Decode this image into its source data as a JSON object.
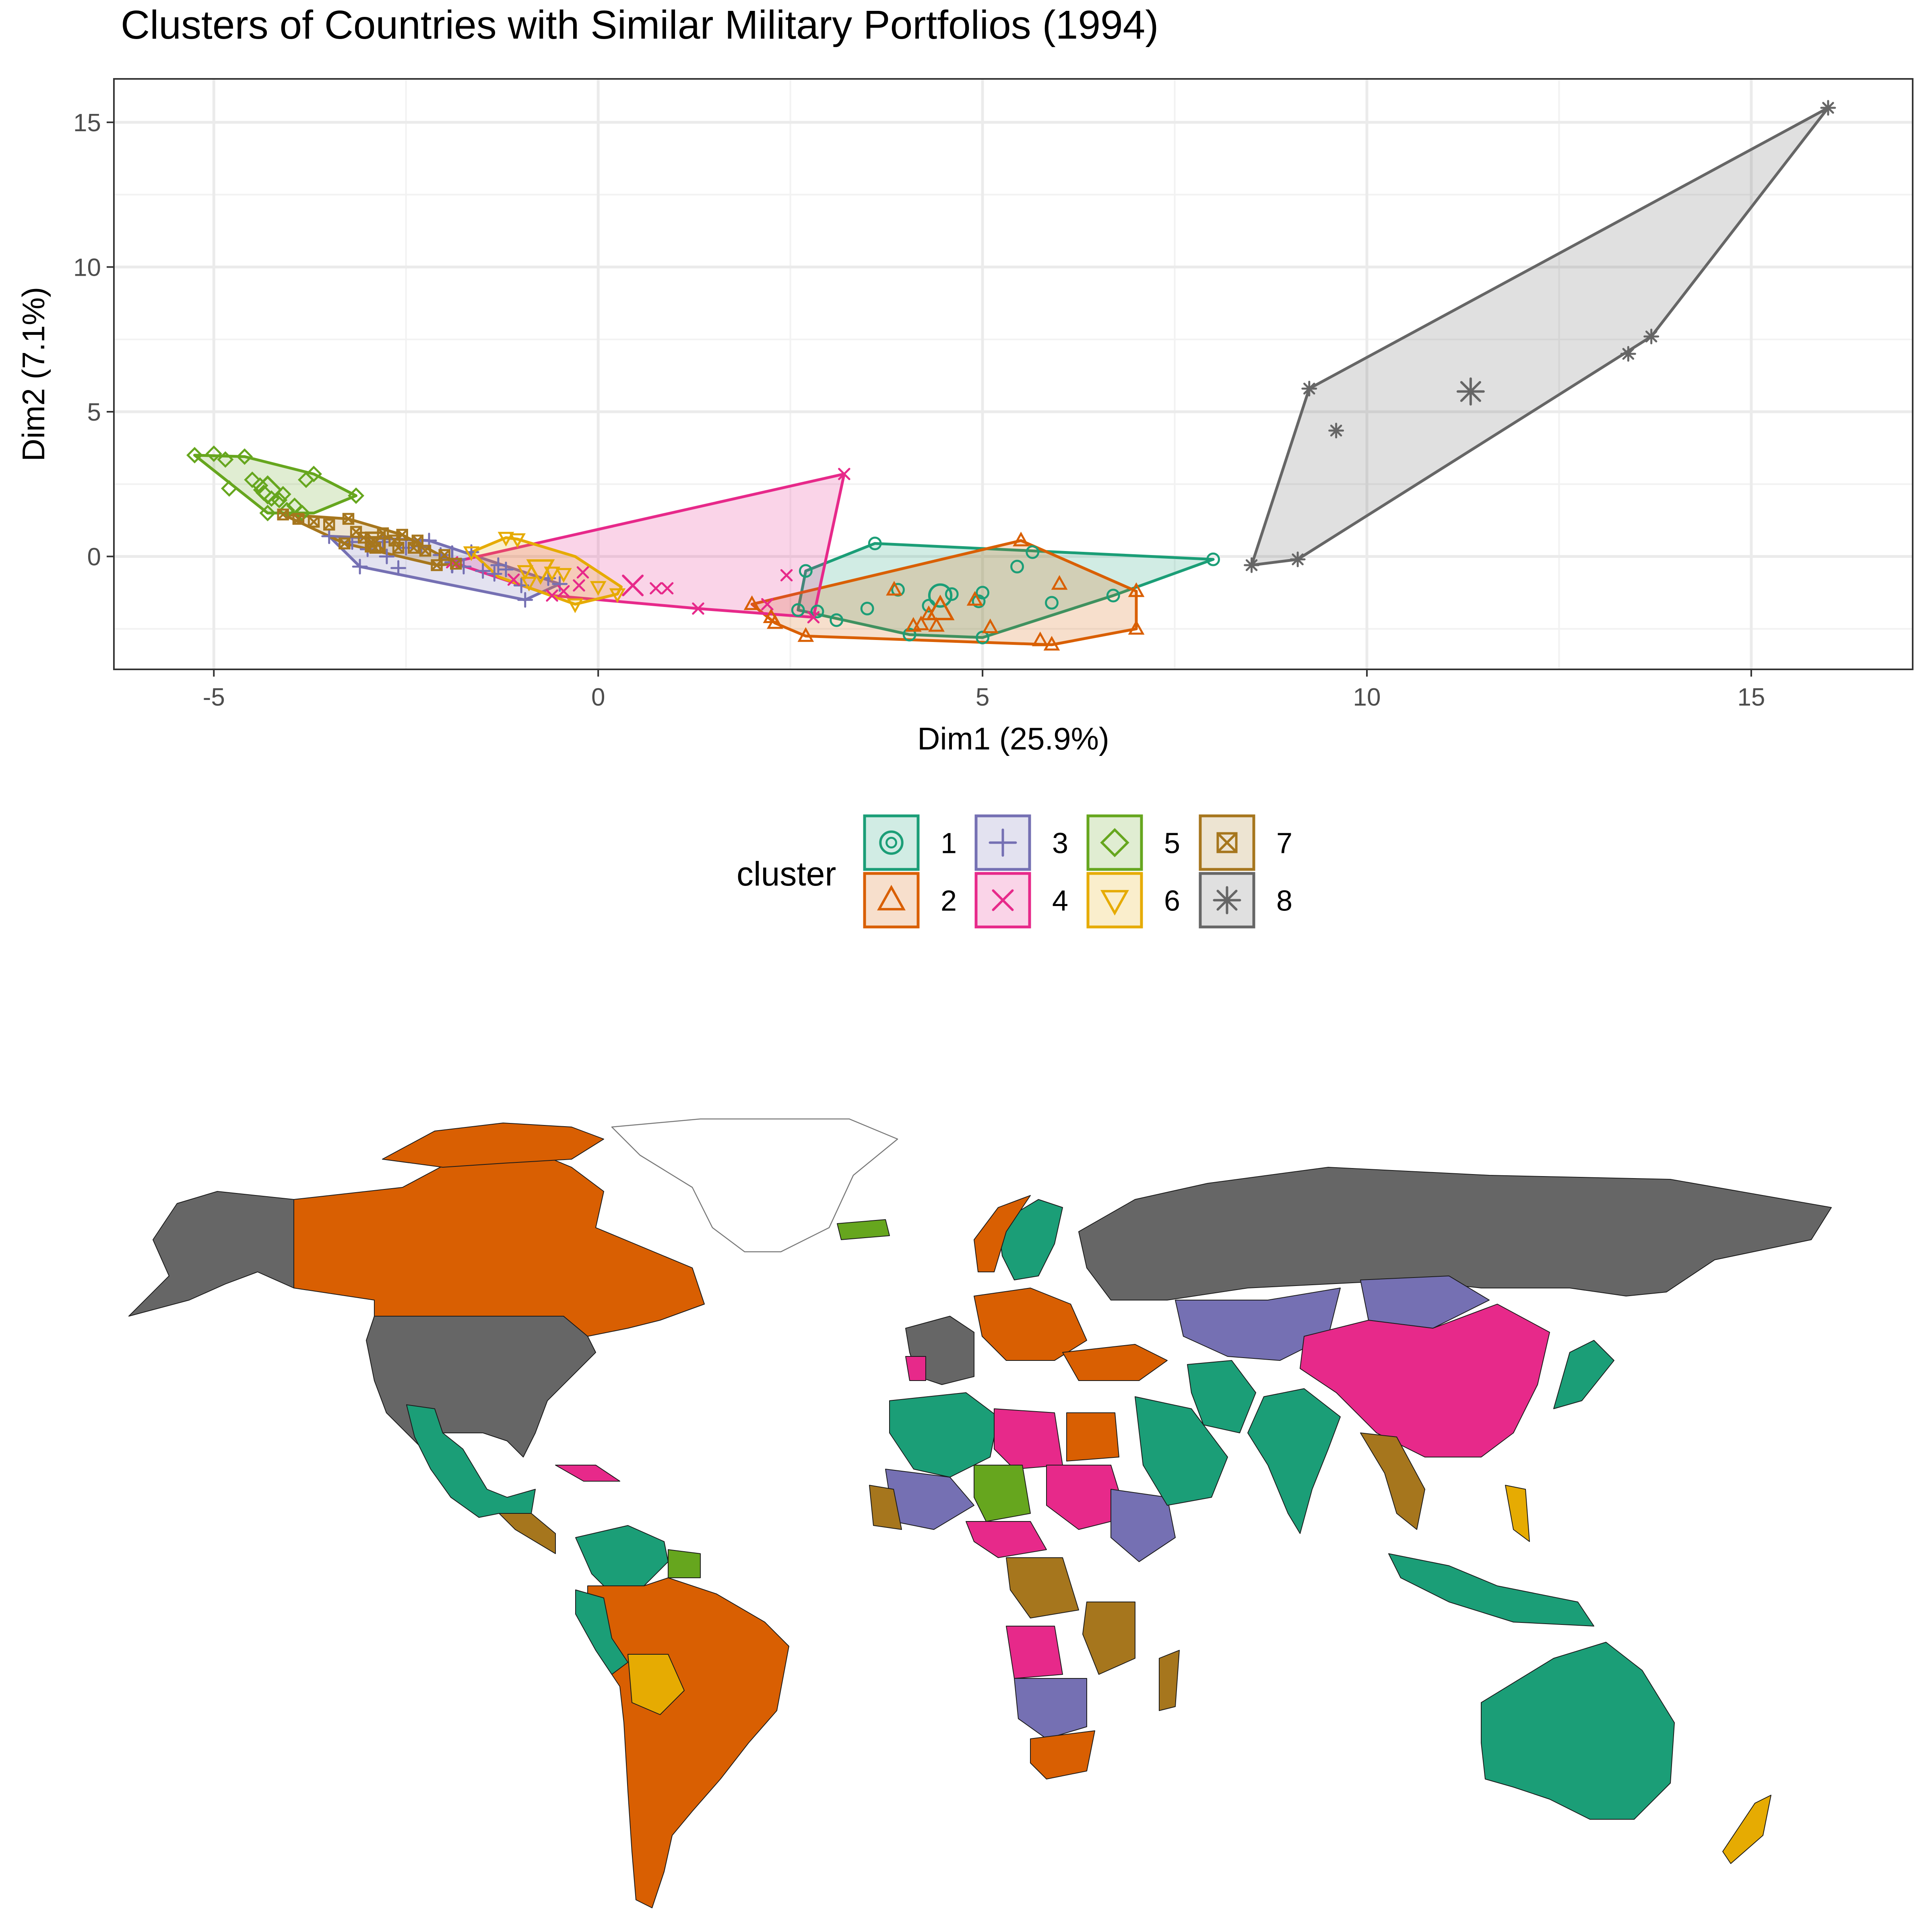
{
  "chart_data": [
    {
      "type": "scatter",
      "title": "Clusters of Countries with Similar Military Portfolios (1994)",
      "xlabel": "Dim1 (25.9%)",
      "ylabel": "Dim2 (7.1%)",
      "xlim": [
        -6.3,
        17.1
      ],
      "ylim": [
        -3.9,
        16.5
      ],
      "x_ticks": [
        -5,
        0,
        5,
        10,
        15
      ],
      "y_ticks": [
        0,
        5,
        10,
        15
      ],
      "x_tick_labels": [
        "-5",
        "0",
        "5",
        "10",
        "15"
      ],
      "y_tick_labels": [
        "0",
        "5",
        "10",
        "15"
      ],
      "grid": true,
      "legend": {
        "title": "cluster",
        "position": "bottom"
      },
      "series": [
        {
          "name": "1",
          "color": "#1B9E77",
          "shape": "circle",
          "points": [
            [
              3.6,
              0.45
            ],
            [
              8.0,
              -0.1
            ],
            [
              5.65,
              0.15
            ],
            [
              5.45,
              -0.35
            ],
            [
              2.7,
              -0.5
            ],
            [
              2.6,
              -1.85
            ],
            [
              2.85,
              -1.9
            ],
            [
              3.1,
              -2.2
            ],
            [
              3.5,
              -1.8
            ],
            [
              4.05,
              -2.7
            ],
            [
              4.3,
              -1.7
            ],
            [
              4.6,
              -1.3
            ],
            [
              4.95,
              -1.55
            ],
            [
              5.0,
              -1.25
            ],
            [
              5.0,
              -2.8
            ],
            [
              5.9,
              -1.6
            ],
            [
              6.7,
              -1.35
            ],
            [
              3.9,
              -1.15
            ]
          ],
          "hull": [
            [
              2.6,
              -1.85
            ],
            [
              2.7,
              -0.5
            ],
            [
              3.6,
              0.45
            ],
            [
              8.0,
              -0.1
            ],
            [
              6.7,
              -1.35
            ],
            [
              5.0,
              -2.8
            ],
            [
              4.05,
              -2.7
            ]
          ],
          "centroid": [
            4.45,
            -1.35
          ]
        },
        {
          "name": "2",
          "color": "#D95F02",
          "shape": "triangle",
          "points": [
            [
              5.5,
              0.55
            ],
            [
              6.0,
              -0.95
            ],
            [
              7.0,
              -1.2
            ],
            [
              7.0,
              -2.5
            ],
            [
              5.75,
              -2.9
            ],
            [
              5.9,
              -3.05
            ],
            [
              5.1,
              -2.45
            ],
            [
              2.0,
              -1.65
            ],
            [
              2.25,
              -2.1
            ],
            [
              2.3,
              -2.3
            ],
            [
              2.7,
              -2.75
            ],
            [
              3.85,
              -1.15
            ],
            [
              4.1,
              -2.4
            ],
            [
              4.3,
              -2.0
            ],
            [
              4.4,
              -2.4
            ],
            [
              4.2,
              -2.35
            ],
            [
              4.9,
              -1.5
            ]
          ],
          "hull": [
            [
              2.0,
              -1.65
            ],
            [
              5.5,
              0.55
            ],
            [
              7.0,
              -1.2
            ],
            [
              7.0,
              -2.5
            ],
            [
              5.9,
              -3.05
            ],
            [
              2.7,
              -2.75
            ],
            [
              2.3,
              -2.3
            ]
          ],
          "centroid": [
            4.45,
            -1.85
          ]
        },
        {
          "name": "3",
          "color": "#7570B3",
          "shape": "plus",
          "points": [
            [
              -3.5,
              0.7
            ],
            [
              -3.2,
              0.5
            ],
            [
              -3.0,
              0.25
            ],
            [
              -2.8,
              0.5
            ],
            [
              -2.75,
              0.0
            ],
            [
              -2.5,
              0.3
            ],
            [
              -2.3,
              0.35
            ],
            [
              -2.2,
              0.55
            ],
            [
              -2.05,
              0.05
            ],
            [
              -1.9,
              -0.2
            ],
            [
              -1.75,
              -0.35
            ],
            [
              -1.65,
              0.15
            ],
            [
              -1.5,
              -0.5
            ],
            [
              -1.35,
              -0.6
            ],
            [
              -1.2,
              -0.45
            ],
            [
              -1.0,
              -1.0
            ],
            [
              -0.95,
              -1.5
            ],
            [
              -0.65,
              -0.75
            ],
            [
              -0.5,
              -0.95
            ],
            [
              -3.1,
              -0.35
            ],
            [
              -2.6,
              -0.4
            ],
            [
              -1.3,
              -0.3
            ]
          ],
          "hull": [
            [
              -3.5,
              0.7
            ],
            [
              -2.2,
              0.55
            ],
            [
              -0.5,
              -0.95
            ],
            [
              -0.95,
              -1.5
            ],
            [
              -3.1,
              -0.35
            ]
          ],
          "centroid": [
            -1.9,
            -0.1
          ]
        },
        {
          "name": "4",
          "color": "#E7298A",
          "shape": "x",
          "points": [
            [
              3.2,
              2.85
            ],
            [
              2.45,
              -0.65
            ],
            [
              2.2,
              -1.65
            ],
            [
              2.8,
              -2.1
            ],
            [
              1.3,
              -1.8
            ],
            [
              0.75,
              -1.1
            ],
            [
              0.9,
              -1.1
            ],
            [
              -0.2,
              -0.55
            ],
            [
              -0.25,
              -1.0
            ],
            [
              -0.45,
              -1.2
            ],
            [
              -0.6,
              -1.35
            ],
            [
              -1.1,
              -0.8
            ],
            [
              -1.9,
              -0.2
            ]
          ],
          "hull": [
            [
              -1.9,
              -0.2
            ],
            [
              3.2,
              2.85
            ],
            [
              2.8,
              -2.1
            ],
            [
              1.3,
              -1.8
            ],
            [
              -0.6,
              -1.35
            ]
          ],
          "centroid": [
            0.45,
            -1.0
          ]
        },
        {
          "name": "5",
          "color": "#66A61E",
          "shape": "diamond",
          "points": [
            [
              -5.25,
              3.5
            ],
            [
              -5.0,
              3.55
            ],
            [
              -4.85,
              3.35
            ],
            [
              -4.6,
              3.45
            ],
            [
              -4.5,
              2.65
            ],
            [
              -4.4,
              2.45
            ],
            [
              -4.35,
              2.2
            ],
            [
              -4.25,
              2.0
            ],
            [
              -4.15,
              1.95
            ],
            [
              -4.1,
              2.15
            ],
            [
              -4.05,
              1.6
            ],
            [
              -3.95,
              1.75
            ],
            [
              -3.85,
              1.5
            ],
            [
              -3.8,
              2.65
            ],
            [
              -3.7,
              2.85
            ],
            [
              -3.15,
              2.1
            ],
            [
              -4.8,
              2.35
            ],
            [
              -4.3,
              1.5
            ]
          ],
          "hull": [
            [
              -5.25,
              3.5
            ],
            [
              -4.6,
              3.45
            ],
            [
              -3.7,
              2.85
            ],
            [
              -3.15,
              2.1
            ],
            [
              -3.7,
              1.5
            ],
            [
              -4.3,
              1.5
            ]
          ],
          "centroid": [
            -4.3,
            2.3
          ]
        },
        {
          "name": "6",
          "color": "#E6AB02",
          "shape": "triangle-down",
          "points": [
            [
              -1.2,
              0.65
            ],
            [
              -1.05,
              0.6
            ],
            [
              -1.65,
              0.15
            ],
            [
              -0.95,
              -0.5
            ],
            [
              -0.3,
              -1.65
            ],
            [
              0.25,
              -1.3
            ],
            [
              -0.6,
              -0.55
            ],
            [
              -0.9,
              -0.9
            ],
            [
              0.0,
              -1.05
            ],
            [
              -0.45,
              -0.6
            ]
          ],
          "hull": [
            [
              -1.65,
              0.15
            ],
            [
              -1.2,
              0.65
            ],
            [
              -1.05,
              0.6
            ],
            [
              -0.3,
              0.0
            ],
            [
              0.3,
              -1.05
            ],
            [
              0.25,
              -1.3
            ],
            [
              -0.3,
              -1.65
            ],
            [
              -1.3,
              -0.7
            ]
          ],
          "centroid": [
            -0.75,
            -0.45
          ]
        },
        {
          "name": "7",
          "color": "#A6761D",
          "shape": "square-cross",
          "points": [
            [
              -4.1,
              1.45
            ],
            [
              -3.9,
              1.3
            ],
            [
              -3.7,
              1.2
            ],
            [
              -3.5,
              1.1
            ],
            [
              -3.25,
              1.3
            ],
            [
              -3.15,
              0.85
            ],
            [
              -3.05,
              0.65
            ],
            [
              -2.95,
              0.5
            ],
            [
              -2.8,
              0.8
            ],
            [
              -2.65,
              0.55
            ],
            [
              -2.6,
              0.3
            ],
            [
              -2.55,
              0.75
            ],
            [
              -2.4,
              0.3
            ],
            [
              -2.35,
              0.55
            ],
            [
              -2.25,
              0.2
            ],
            [
              -2.1,
              -0.3
            ],
            [
              -2.0,
              0.05
            ],
            [
              -1.85,
              -0.25
            ],
            [
              -2.9,
              0.3
            ],
            [
              -3.3,
              0.45
            ]
          ],
          "hull": [
            [
              -4.1,
              1.45
            ],
            [
              -3.25,
              1.3
            ],
            [
              -2.55,
              0.75
            ],
            [
              -1.85,
              -0.25
            ],
            [
              -2.1,
              -0.3
            ],
            [
              -3.3,
              0.45
            ]
          ],
          "centroid": [
            -2.9,
            0.5
          ]
        },
        {
          "name": "8",
          "color": "#666666",
          "shape": "asterisk",
          "points": [
            [
              16.0,
              15.5
            ],
            [
              13.7,
              7.6
            ],
            [
              13.4,
              7.0
            ],
            [
              9.25,
              5.8
            ],
            [
              9.6,
              4.35
            ],
            [
              9.1,
              -0.1
            ],
            [
              8.5,
              -0.3
            ]
          ],
          "hull": [
            [
              8.5,
              -0.3
            ],
            [
              9.25,
              5.8
            ],
            [
              16.0,
              15.5
            ],
            [
              13.7,
              7.6
            ],
            [
              9.1,
              -0.1
            ]
          ],
          "centroid": [
            11.35,
            5.7
          ]
        }
      ]
    },
    {
      "type": "choropleth",
      "legend_shared_with_chart": 0,
      "categories": [
        "1",
        "2",
        "3",
        "4",
        "5",
        "6",
        "7",
        "8"
      ]
    }
  ]
}
